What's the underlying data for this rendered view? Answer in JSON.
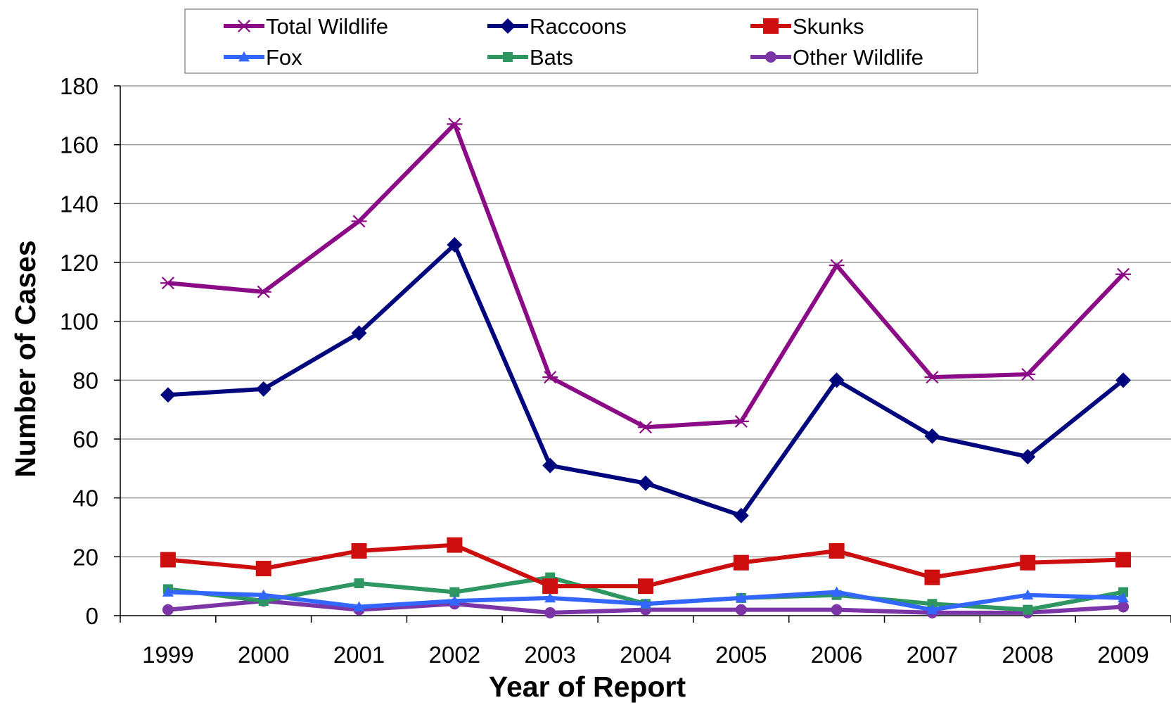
{
  "chart_data": {
    "type": "line",
    "xlabel": "Year of Report",
    "ylabel": "Number of Cases",
    "ylim": [
      0,
      180
    ],
    "yticks": [
      0,
      20,
      40,
      60,
      80,
      100,
      120,
      140,
      160,
      180
    ],
    "grid": "horizontal",
    "legend_position": "top",
    "categories": [
      "1999",
      "2000",
      "2001",
      "2002",
      "2003",
      "2004",
      "2005",
      "2006",
      "2007",
      "2008",
      "2009"
    ],
    "series": [
      {
        "name": "Total Wildlife",
        "color": "#8B0A86",
        "marker": "star-icon",
        "values": [
          113,
          110,
          134,
          167,
          81,
          64,
          66,
          119,
          81,
          82,
          116
        ]
      },
      {
        "name": "Raccoons",
        "color": "#00067C",
        "marker": "diamond-icon",
        "values": [
          75,
          77,
          96,
          126,
          51,
          45,
          34,
          80,
          61,
          54,
          80
        ]
      },
      {
        "name": "Skunks",
        "color": "#CC0E0E",
        "marker": "square-icon",
        "values": [
          19,
          16,
          22,
          24,
          10,
          10,
          18,
          22,
          13,
          18,
          19
        ]
      },
      {
        "name": "Fox",
        "color": "#3366FF",
        "marker": "triangle-icon",
        "values": [
          8,
          7,
          3,
          5,
          6,
          4,
          6,
          8,
          2,
          7,
          6
        ]
      },
      {
        "name": "Bats",
        "color": "#2E9661",
        "marker": "small-square-icon",
        "values": [
          9,
          5,
          11,
          8,
          13,
          4,
          6,
          7,
          4,
          2,
          8
        ]
      },
      {
        "name": "Other Wildlife",
        "color": "#7B35A6",
        "marker": "circle-icon",
        "values": [
          2,
          5,
          2,
          4,
          1,
          2,
          2,
          2,
          1,
          1,
          3
        ]
      }
    ]
  }
}
